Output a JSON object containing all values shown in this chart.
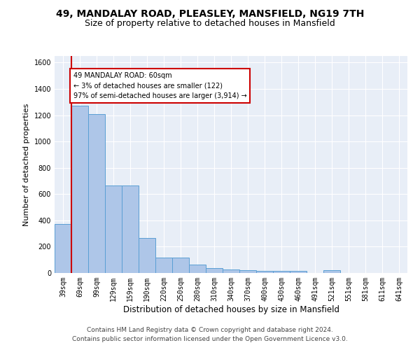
{
  "title": "49, MANDALAY ROAD, PLEASLEY, MANSFIELD, NG19 7TH",
  "subtitle": "Size of property relative to detached houses in Mansfield",
  "xlabel": "Distribution of detached houses by size in Mansfield",
  "ylabel": "Number of detached properties",
  "categories": [
    "39sqm",
    "69sqm",
    "99sqm",
    "129sqm",
    "159sqm",
    "190sqm",
    "220sqm",
    "250sqm",
    "280sqm",
    "310sqm",
    "340sqm",
    "370sqm",
    "400sqm",
    "430sqm",
    "460sqm",
    "491sqm",
    "521sqm",
    "551sqm",
    "581sqm",
    "611sqm",
    "641sqm"
  ],
  "values": [
    370,
    1270,
    1210,
    665,
    665,
    265,
    115,
    115,
    65,
    35,
    25,
    20,
    15,
    15,
    15,
    0,
    20,
    0,
    0,
    0,
    0
  ],
  "bar_color": "#aec6e8",
  "bar_edge_color": "#5a9fd4",
  "annotation_text": "49 MANDALAY ROAD: 60sqm\n← 3% of detached houses are smaller (122)\n97% of semi-detached houses are larger (3,914) →",
  "annotation_box_color": "#ffffff",
  "annotation_box_edge": "#cc0000",
  "annotation_text_color": "#000000",
  "highlight_line_color": "#cc0000",
  "ylim": [
    0,
    1650
  ],
  "yticks": [
    0,
    200,
    400,
    600,
    800,
    1000,
    1200,
    1400,
    1600
  ],
  "background_color": "#e8eef7",
  "grid_color": "#ffffff",
  "footer_line1": "Contains HM Land Registry data © Crown copyright and database right 2024.",
  "footer_line2": "Contains public sector information licensed under the Open Government Licence v3.0.",
  "title_fontsize": 10,
  "subtitle_fontsize": 9,
  "xlabel_fontsize": 8.5,
  "ylabel_fontsize": 8,
  "tick_fontsize": 7,
  "footer_fontsize": 6.5
}
